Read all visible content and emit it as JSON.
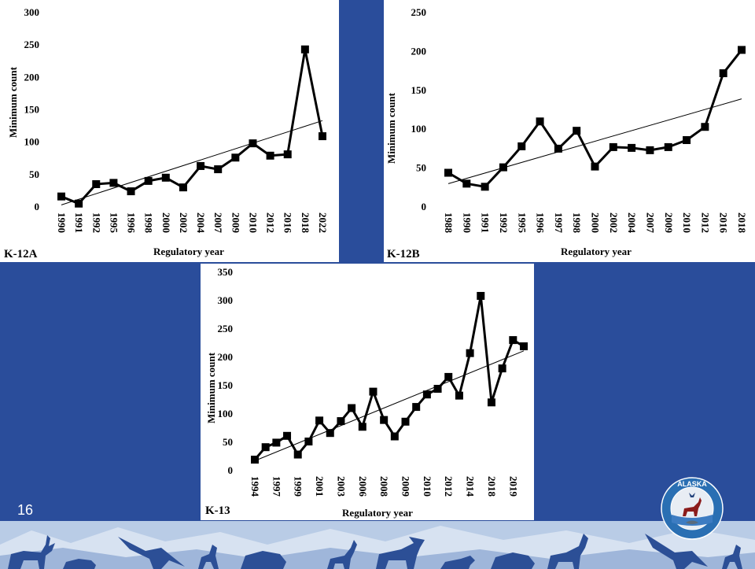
{
  "slide": {
    "number": "16"
  },
  "colors": {
    "background": "#2a4d9b",
    "banner_sky": "#b9cce6",
    "banner_silhouettes": "#2c4f96",
    "logo_ring": "#2a6fb3",
    "logo_text_ring": "#3d7cc2"
  },
  "logo": {
    "text": "ALASKA DEPARTMENT OF FISH AND GAME",
    "icons": [
      "caribou-icon",
      "fish-icon",
      "bird-icon"
    ]
  },
  "banner": {
    "icons": [
      "caribou-icon",
      "bear-icon",
      "eagle-icon",
      "goat-icon",
      "moose-icon",
      "wolf-icon",
      "caribou-icon",
      "eagle-icon",
      "goat-icon"
    ]
  },
  "chart_data": [
    {
      "id": "k12a",
      "type": "line",
      "panel_label": "K-12A",
      "xlabel": "Regulatory year",
      "ylabel": "Minimum count",
      "categories": [
        "1990",
        "1991",
        "1992",
        "1995",
        "1996",
        "1998",
        "2000",
        "2002",
        "2004",
        "2007",
        "2009",
        "2010",
        "2012",
        "2016",
        "2018",
        "2022"
      ],
      "values": [
        15,
        4,
        34,
        36,
        23,
        39,
        44,
        29,
        62,
        57,
        75,
        97,
        78,
        80,
        242,
        108
      ],
      "trendline": [
        2,
        132
      ],
      "yticks": [
        0,
        50,
        100,
        150,
        200,
        250,
        300
      ],
      "ylim": [
        0,
        300
      ],
      "marker": "square",
      "grid": false
    },
    {
      "id": "k12b",
      "type": "line",
      "panel_label": "K-12B",
      "xlabel": "Regulatory year",
      "ylabel": "Minimum count",
      "categories": [
        "1988",
        "1990",
        "1991",
        "1992",
        "1995",
        "1996",
        "1997",
        "1998",
        "2000",
        "2002",
        "2004",
        "2007",
        "2009",
        "2010",
        "2012",
        "2016",
        "2018"
      ],
      "values": [
        43,
        29,
        25,
        50,
        77,
        109,
        74,
        97,
        51,
        76,
        75,
        72,
        76,
        85,
        102,
        171,
        201
      ],
      "trendline": [
        29,
        138
      ],
      "yticks": [
        0,
        50,
        100,
        150,
        200,
        250
      ],
      "ylim": [
        0,
        250
      ],
      "marker": "square",
      "grid": false
    },
    {
      "id": "k13",
      "type": "line",
      "panel_label": "K-13",
      "xlabel": "Regulatory year",
      "ylabel": "Minimum count",
      "categories": [
        "1994",
        "",
        "1997",
        "",
        "1999",
        "",
        "2001",
        "",
        "2003",
        "",
        "2006",
        "",
        "2008",
        "",
        "2009",
        "",
        "2010",
        "",
        "2012",
        "",
        "2014",
        "",
        "2018",
        "",
        "2019",
        ""
      ],
      "values": [
        18,
        40,
        48,
        60,
        27,
        50,
        87,
        65,
        86,
        109,
        76,
        138,
        88,
        59,
        85,
        111,
        133,
        143,
        164,
        131,
        206,
        307,
        119,
        179,
        229,
        218
      ],
      "trendline": [
        16,
        210
      ],
      "yticks": [
        0,
        50,
        100,
        150,
        200,
        250,
        300,
        350
      ],
      "ylim": [
        0,
        350
      ],
      "marker": "square",
      "grid": false
    }
  ]
}
